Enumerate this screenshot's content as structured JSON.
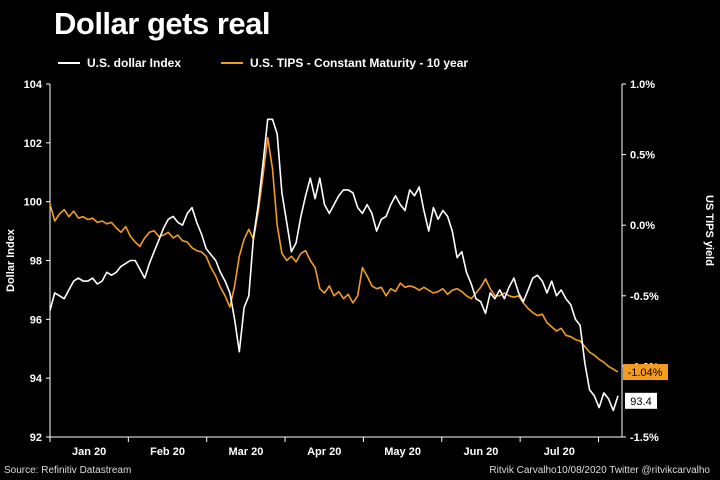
{
  "title": "Dollar gets real",
  "colors": {
    "dxy": "#ffffff",
    "tips": "#f39c1e",
    "background": "#000000"
  },
  "source": "Source: Refinitiv Datastream",
  "credit": "Ritvik Carvalho10/08/2020 Twitter @ritvikcarvalho",
  "chart_data": {
    "type": "line",
    "x_labels": [
      "Jan 20",
      "Feb 20",
      "Mar 20",
      "Apr 20",
      "May 20",
      "Jun 20",
      "Jul 20"
    ],
    "y_left": {
      "label": "Dollar Index",
      "ticks": [
        "92",
        "94",
        "96",
        "98",
        "100",
        "102",
        "104"
      ],
      "range": [
        92,
        104
      ]
    },
    "y_right": {
      "label": "US TIPS yield",
      "ticks": [
        "-1.5%",
        "-1.0%",
        "-0.5%",
        "0.0%",
        "0.5%",
        "1.0%"
      ],
      "range": [
        -1.5,
        1.0
      ]
    },
    "grid": false,
    "legend_position": "top-left",
    "series": [
      {
        "name": "U.S. dollar Index",
        "axis": "left",
        "values": [
          96.3,
          96.9,
          96.8,
          96.7,
          97.0,
          97.3,
          97.4,
          97.3,
          97.3,
          97.4,
          97.2,
          97.3,
          97.6,
          97.5,
          97.6,
          97.8,
          97.9,
          98.0,
          98.0,
          97.7,
          97.4,
          97.9,
          98.3,
          98.7,
          99.1,
          99.4,
          99.5,
          99.3,
          99.2,
          99.6,
          99.8,
          99.3,
          98.9,
          98.4,
          98.2,
          98.0,
          97.6,
          97.3,
          96.9,
          96.0,
          94.9,
          96.4,
          96.8,
          98.8,
          99.9,
          101.3,
          102.8,
          102.8,
          102.3,
          100.3,
          99.3,
          98.3,
          98.6,
          99.5,
          100.2,
          100.8,
          100.1,
          100.8,
          99.9,
          99.6,
          99.9,
          100.2,
          100.4,
          100.4,
          100.3,
          99.8,
          99.6,
          99.9,
          99.6,
          99.0,
          99.4,
          99.5,
          99.9,
          100.2,
          99.9,
          99.7,
          100.4,
          100.2,
          100.5,
          99.7,
          99.0,
          99.8,
          99.4,
          99.7,
          99.5,
          99.0,
          98.1,
          98.3,
          97.6,
          97.2,
          96.7,
          96.6,
          96.2,
          96.9,
          96.7,
          97.0,
          96.7,
          97.1,
          97.4,
          96.9,
          96.6,
          97.0,
          97.4,
          97.5,
          97.3,
          96.9,
          97.3,
          96.8,
          97.0,
          96.7,
          96.5,
          96.0,
          95.8,
          94.5,
          93.6,
          93.4,
          93.0,
          93.5,
          93.3,
          92.9,
          93.4
        ]
      },
      {
        "name": "U.S. TIPS - Constant Maturity - 10 year",
        "axis": "right",
        "values": [
          0.15,
          0.03,
          0.08,
          0.11,
          0.06,
          0.1,
          0.05,
          0.06,
          0.04,
          0.05,
          0.02,
          0.03,
          0.01,
          0.02,
          -0.02,
          -0.05,
          -0.01,
          -0.08,
          -0.12,
          -0.15,
          -0.09,
          -0.05,
          -0.04,
          -0.08,
          -0.07,
          -0.05,
          -0.09,
          -0.07,
          -0.11,
          -0.12,
          -0.16,
          -0.18,
          -0.19,
          -0.22,
          -0.3,
          -0.36,
          -0.44,
          -0.5,
          -0.58,
          -0.43,
          -0.22,
          -0.1,
          -0.03,
          -0.1,
          0.1,
          0.35,
          0.62,
          0.4,
          0.0,
          -0.2,
          -0.25,
          -0.22,
          -0.26,
          -0.2,
          -0.18,
          -0.25,
          -0.3,
          -0.45,
          -0.48,
          -0.43,
          -0.5,
          -0.47,
          -0.52,
          -0.49,
          -0.55,
          -0.5,
          -0.3,
          -0.36,
          -0.43,
          -0.45,
          -0.44,
          -0.5,
          -0.45,
          -0.47,
          -0.41,
          -0.44,
          -0.43,
          -0.44,
          -0.46,
          -0.44,
          -0.46,
          -0.48,
          -0.47,
          -0.45,
          -0.49,
          -0.46,
          -0.45,
          -0.47,
          -0.5,
          -0.52,
          -0.48,
          -0.44,
          -0.38,
          -0.45,
          -0.5,
          -0.5,
          -0.48,
          -0.5,
          -0.51,
          -0.5,
          -0.55,
          -0.59,
          -0.62,
          -0.64,
          -0.63,
          -0.69,
          -0.72,
          -0.75,
          -0.73,
          -0.78,
          -0.79,
          -0.81,
          -0.82,
          -0.86,
          -0.9,
          -0.92,
          -0.95,
          -0.97,
          -1.0,
          -1.02,
          -1.04
        ]
      }
    ],
    "annotations": [
      {
        "label": "-1.04%",
        "series": "U.S. TIPS - Constant Maturity - 10 year",
        "value": -1.04
      },
      {
        "label": "93.4",
        "series": "U.S. dollar Index",
        "value": 93.4
      }
    ]
  }
}
